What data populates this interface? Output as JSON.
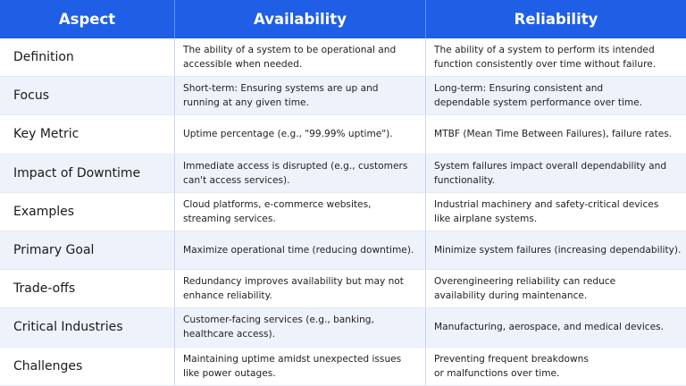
{
  "table": {
    "header": [
      "Aspect",
      "Availability",
      "Reliability"
    ],
    "rows": [
      [
        "Definition",
        [
          "The ability of a system to be operational and",
          "accessible when needed."
        ],
        [
          "The ability of a system to perform its intended",
          "function consistently over time without failure."
        ]
      ],
      [
        "Focus",
        [
          "Short-term: Ensuring systems are up and",
          "running at any given time."
        ],
        [
          "Long-term: Ensuring consistent and",
          "dependable system performance over time."
        ]
      ],
      [
        "Key Metric",
        [
          "Uptime percentage (e.g., \"99.99% uptime\")."
        ],
        [
          "MTBF (Mean Time Between Failures), failure rates."
        ]
      ],
      [
        "Impact of Downtime",
        [
          "Immediate access is disrupted (e.g., customers",
          "can't access services)."
        ],
        [
          "System failures impact overall dependability and",
          "functionality."
        ]
      ],
      [
        "Examples",
        [
          "Cloud platforms, e-commerce websites,",
          "streaming services."
        ],
        [
          "Industrial machinery and safety-critical devices",
          "like airplane systems."
        ]
      ],
      [
        "Primary Goal",
        [
          "Maximize operational time (reducing downtime)."
        ],
        [
          "Minimize system failures (increasing dependability)."
        ]
      ],
      [
        "Trade-offs",
        [
          "Redundancy improves availability but may not",
          "enhance reliability."
        ],
        [
          "Overengineering reliability can reduce",
          "availability during maintenance."
        ]
      ],
      [
        "Critical Industries",
        [
          "Customer-facing services (e.g., banking,",
          "healthcare access)."
        ],
        [
          "Manufacturing, aerospace, and medical devices."
        ]
      ],
      [
        "Challenges",
        [
          "Maintaining uptime amidst unexpected issues",
          "like power outages."
        ],
        [
          "Preventing frequent breakdowns",
          "or malfunctions over time."
        ]
      ]
    ]
  }
}
